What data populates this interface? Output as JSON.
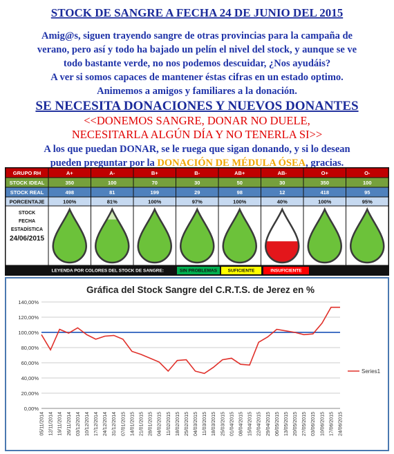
{
  "header": {
    "title": "STOCK DE SANGRE A FECHA 24 DE JUNIO DEL 2015",
    "paragraph": [
      "Amig@s, siguen trayendo sangre de otras provincias para la campaña de",
      "verano, pero así y todo ha bajado un pelín el nivel del stock, y aunque se ve",
      "todo bastante verde, no nos podemos descuidar, ¿Nos ayudáis?",
      "A ver si somos capaces de mantener éstas cifras en un estado optimo.",
      "Animemos a amigos y familiares  a la donación."
    ],
    "headline": "SE NECESITA DONACIONES Y NUEVOS DONANTES",
    "appeal": [
      "<<DONEMOS SANGRE, DONAR NO DUELE,",
      "NECESITARLA  ALGÚN DÍA Y NO TENERLA SI>>"
    ],
    "closing": {
      "line1": "A los que puedan DONAR, se le ruega que sigan donando, y si lo desean",
      "before": "pueden preguntar por la ",
      "highlight": "DONACIÓN DE MÉDULA ÓSEA",
      "after": ", gracias."
    }
  },
  "table": {
    "header": [
      "GRUPO RH",
      "A+",
      "A-",
      "B+",
      "B-",
      "AB+",
      "AB-",
      "O+",
      "O-"
    ],
    "rows": [
      [
        "STOCK IDEAL",
        "350",
        "100",
        "70",
        "30",
        "50",
        "30",
        "350",
        "100"
      ],
      [
        "STOCK REAL",
        "498",
        "81",
        "199",
        "29",
        "98",
        "12",
        "418",
        "95"
      ],
      [
        "PORCENTAJE",
        "100%",
        "81%",
        "100%",
        "97%",
        "100%",
        "40%",
        "100%",
        "95%"
      ]
    ],
    "date_cell": [
      "STOCK",
      "FECHA",
      "ESTADÍSTICA",
      "24/06/2015"
    ],
    "drop_colors": [
      "#6cc23a",
      "#6cc23a",
      "#6cc23a",
      "#6cc23a",
      "#6cc23a",
      "#e3161b",
      "#6cc23a",
      "#6cc23a"
    ],
    "legend": {
      "label": "LEYENDA POR COLORES DEL STOCK DE SANGRE:",
      "items": [
        "SIN PROBLEMAS",
        "SUFICIENTE",
        "INSUFICIENTE"
      ],
      "colors": [
        "#00b050",
        "#ffff00",
        "#ff0000"
      ]
    }
  },
  "chart_data": {
    "type": "line",
    "title": "Gráfica del Stock Sangre del C.R.T.S. de Jerez en %",
    "categories": [
      "05/11/2014",
      "12/11/2014",
      "19/11/2014",
      "26/11/2014",
      "03/12/2014",
      "10/12/2014",
      "17/12/2014",
      "24/12/2014",
      "31/12/2014",
      "07/01/2015",
      "14/01/2015",
      "21/01/2015",
      "28/01/2015",
      "04/02/2015",
      "11/02/2015",
      "18/02/2015",
      "25/02/2015",
      "04/03/2015",
      "11/03/2015",
      "18/03/2015",
      "25/03/2015",
      "01/04/2015",
      "08/04/2015",
      "15/04/2015",
      "22/04/2015",
      "29/04/2015",
      "06/05/2015",
      "13/05/2015",
      "20/05/2015",
      "27/05/2015",
      "03/06/2015",
      "10/06/2015",
      "17/06/2015",
      "24/06/2015"
    ],
    "series": [
      {
        "name": "Series1",
        "color": "#e0302a",
        "values": [
          97,
          77,
          104,
          99,
          106,
          97,
          91,
          95,
          96,
          91,
          75,
          71,
          66,
          61,
          49,
          63,
          64,
          49,
          46,
          54,
          64,
          66,
          58,
          57,
          87,
          94,
          104,
          102,
          100,
          97,
          98,
          112,
          133,
          133
        ]
      }
    ],
    "target_line": {
      "value": 100,
      "color": "#4472c4"
    },
    "ylim": [
      0,
      140
    ],
    "yticks": [
      {
        "value": 0,
        "label": "0,00%"
      },
      {
        "value": 20,
        "label": "20,00%"
      },
      {
        "value": 40,
        "label": "40,00%"
      },
      {
        "value": 60,
        "label": "60,00%"
      },
      {
        "value": 80,
        "label": "80,00%"
      },
      {
        "value": 100,
        "label": "100,00%"
      },
      {
        "value": 120,
        "label": "120,00%"
      },
      {
        "value": 140,
        "label": "140,00%"
      }
    ],
    "grid": true,
    "legend": "right"
  }
}
